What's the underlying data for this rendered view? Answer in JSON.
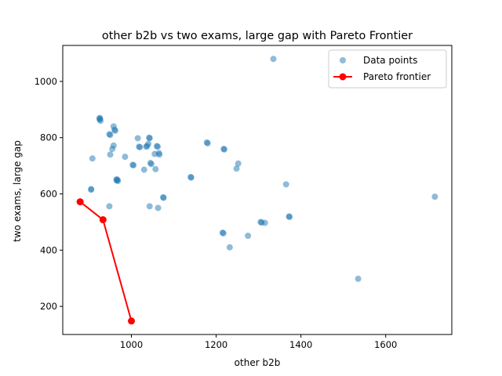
{
  "chart_data": {
    "type": "scatter",
    "title": "other b2b vs two exams, large gap with Pareto Frontier",
    "xlabel": "other b2b",
    "ylabel": "two exams, large gap",
    "xlim": [
      838,
      1756
    ],
    "ylim": [
      100,
      1128
    ],
    "xticks": [
      1000,
      1200,
      1400,
      1600
    ],
    "yticks": [
      200,
      400,
      600,
      800,
      1000
    ],
    "grid": false,
    "legend_position": "top-right",
    "legend": [
      "Data points",
      "Pareto frontier"
    ],
    "series": [
      {
        "name": "Data points",
        "kind": "scatter",
        "color": "#1f77b4",
        "opacity": 0.5,
        "points": [
          [
            925,
            870
          ],
          [
            925,
            865
          ],
          [
            927,
            860
          ],
          [
            926,
            868
          ],
          [
            958,
            840
          ],
          [
            960,
            828
          ],
          [
            962,
            825
          ],
          [
            948,
            812
          ],
          [
            950,
            810
          ],
          [
            958,
            772
          ],
          [
            955,
            760
          ],
          [
            950,
            740
          ],
          [
            985,
            732
          ],
          [
            908,
            726
          ],
          [
            965,
            652
          ],
          [
            965,
            648
          ],
          [
            967,
            650
          ],
          [
            968,
            646
          ],
          [
            905,
            617
          ],
          [
            905,
            615
          ],
          [
            948,
            556
          ],
          [
            1003,
            703
          ],
          [
            1005,
            702
          ],
          [
            1015,
            798
          ],
          [
            1018,
            768
          ],
          [
            1020,
            766
          ],
          [
            1035,
            768
          ],
          [
            1037,
            770
          ],
          [
            1040,
            778
          ],
          [
            1042,
            800
          ],
          [
            1043,
            798
          ],
          [
            1045,
            710
          ],
          [
            1047,
            706
          ],
          [
            1030,
            686
          ],
          [
            1055,
            742
          ],
          [
            1057,
            688
          ],
          [
            1060,
            770
          ],
          [
            1062,
            768
          ],
          [
            1065,
            745
          ],
          [
            1066,
            740
          ],
          [
            1063,
            550
          ],
          [
            1043,
            556
          ],
          [
            1075,
            588
          ],
          [
            1076,
            586
          ],
          [
            1140,
            660
          ],
          [
            1141,
            658
          ],
          [
            1178,
            783
          ],
          [
            1180,
            780
          ],
          [
            1218,
            760
          ],
          [
            1219,
            758
          ],
          [
            1215,
            462
          ],
          [
            1217,
            460
          ],
          [
            1232,
            410
          ],
          [
            1248,
            690
          ],
          [
            1252,
            708
          ],
          [
            1275,
            451
          ],
          [
            1305,
            500
          ],
          [
            1307,
            498
          ],
          [
            1315,
            497
          ],
          [
            1335,
            1080
          ],
          [
            1365,
            634
          ],
          [
            1372,
            520
          ],
          [
            1373,
            518
          ],
          [
            1535,
            298
          ],
          [
            1716,
            590
          ]
        ]
      },
      {
        "name": "Pareto frontier",
        "kind": "line",
        "color": "#ff0000",
        "points": [
          [
            879,
            572
          ],
          [
            933,
            508
          ],
          [
            1000,
            148
          ]
        ]
      }
    ]
  }
}
